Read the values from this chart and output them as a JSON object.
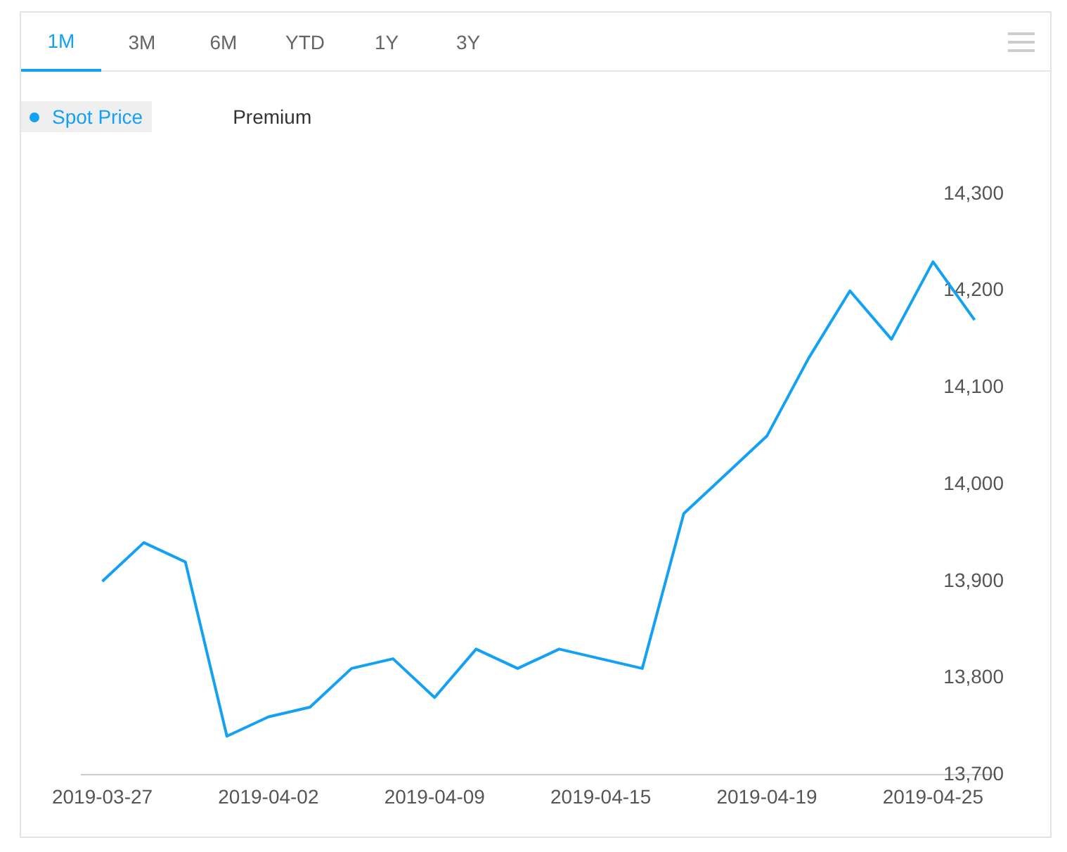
{
  "chart_data": {
    "type": "line",
    "annotations": [
      "1M",
      "3M",
      "6M",
      "YTD",
      "1Y",
      "3Y"
    ],
    "categories": [
      "2019-03-27",
      null,
      null,
      null,
      "2019-04-02",
      null,
      null,
      null,
      "2019-04-09",
      null,
      null,
      null,
      "2019-04-15",
      null,
      null,
      null,
      "2019-04-19",
      null,
      null,
      null,
      "2019-04-25",
      null
    ],
    "series": [
      {
        "name": "Spot Price",
        "color": "#13a1f5",
        "values": [
          13900,
          13940,
          13920,
          13740,
          13760,
          13770,
          13810,
          13820,
          13780,
          13830,
          13810,
          13830,
          13820,
          13810,
          13970,
          14010,
          14050,
          14130,
          14200,
          14150,
          14230,
          14170
        ]
      },
      {
        "name": "Premium",
        "color": "#333333",
        "values": [
          null,
          null,
          null,
          null,
          null,
          null,
          null,
          null,
          null,
          null,
          null,
          null,
          null,
          null,
          null,
          null,
          null,
          null,
          null,
          null,
          null,
          null
        ]
      }
    ],
    "ylim": [
      13700,
      14300
    ],
    "yticks": [
      {
        "value": 13700,
        "label": "13,700"
      },
      {
        "value": 13800,
        "label": "13,800"
      },
      {
        "value": 13900,
        "label": "13,900"
      },
      {
        "value": 14000,
        "label": "14,000"
      },
      {
        "value": 14100,
        "label": "14,100"
      },
      {
        "value": 14200,
        "label": "14,200"
      },
      {
        "value": 14300,
        "label": "14,300"
      }
    ],
    "grid": false,
    "legend": "top left",
    "marker": "none",
    "line_style": "solid"
  }
}
